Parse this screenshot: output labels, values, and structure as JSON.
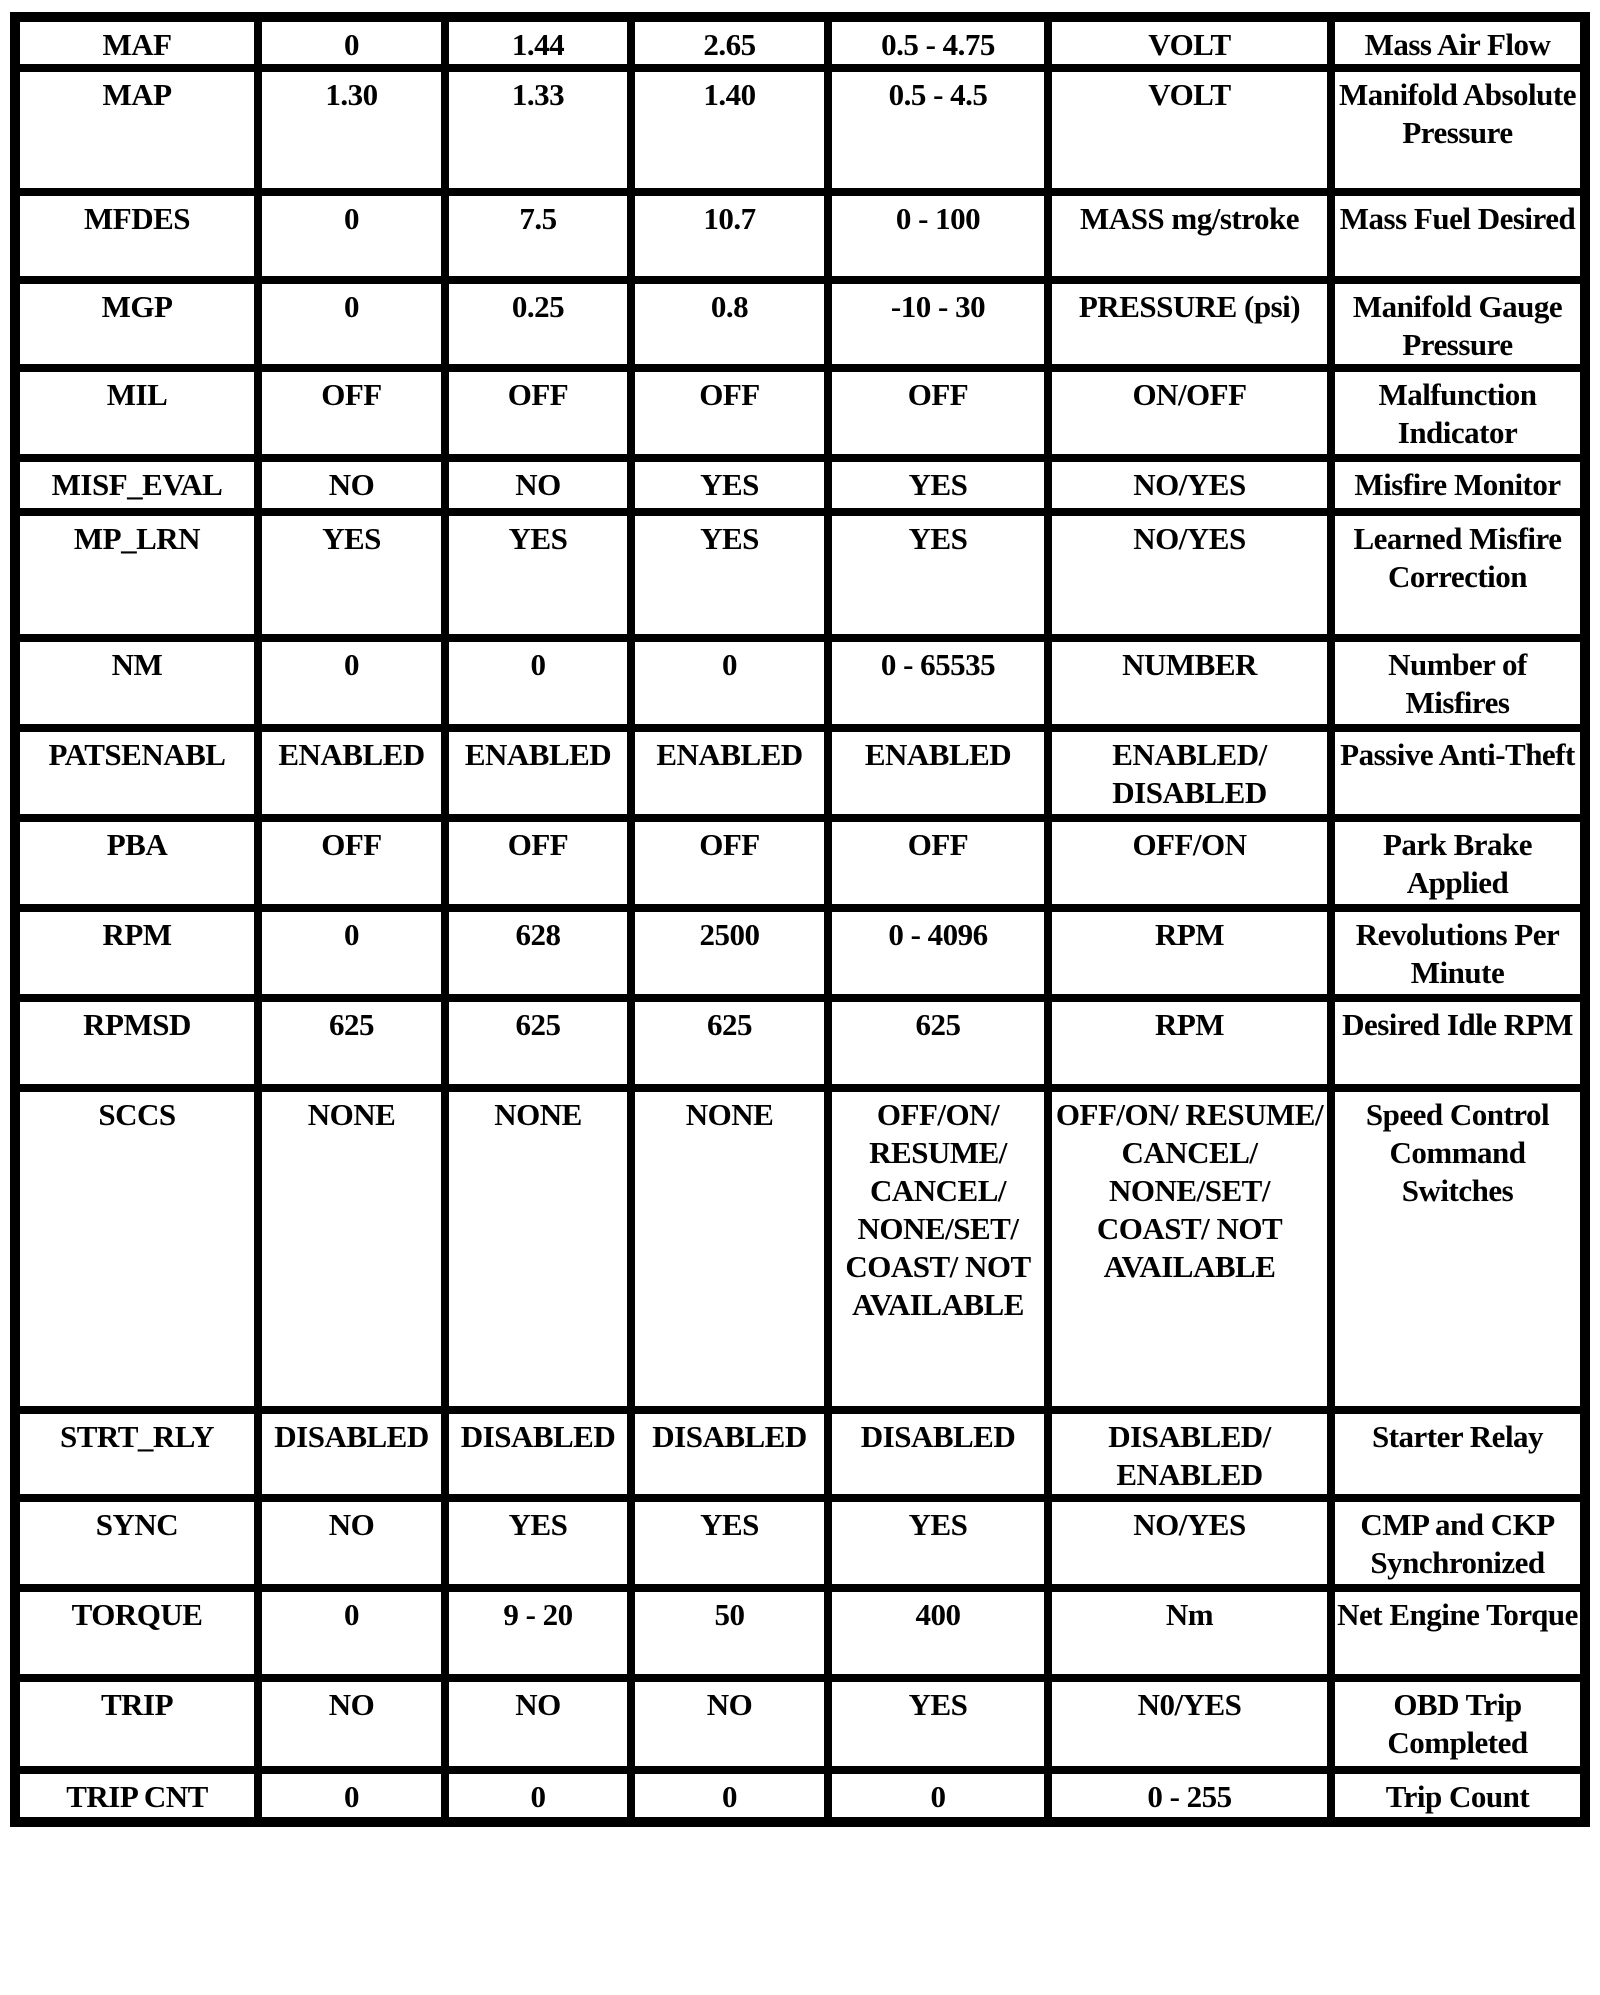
{
  "rows": [
    [
      "MAF",
      "0",
      "1.44",
      "2.65",
      "0.5 - 4.75",
      "VOLT",
      "Mass Air Flow"
    ],
    [
      "MAP",
      "1.30",
      "1.33",
      "1.40",
      "0.5 - 4.5",
      "VOLT",
      "Manifold Absolute Pressure"
    ],
    [
      "MFDES",
      "0",
      "7.5",
      "10.7",
      "0 - 100",
      "MASS mg/stroke",
      "Mass Fuel Desired"
    ],
    [
      "MGP",
      "0",
      "0.25",
      "0.8",
      "-10 - 30",
      "PRESSURE (psi)",
      "Manifold Gauge Pressure"
    ],
    [
      "MIL",
      "OFF",
      "OFF",
      "OFF",
      "OFF",
      "ON/OFF",
      "Malfunction Indicator"
    ],
    [
      "MISF_EVAL",
      "NO",
      "NO",
      "YES",
      "YES",
      "NO/YES",
      "Misfire Monitor"
    ],
    [
      "MP_LRN",
      "YES",
      "YES",
      "YES",
      "YES",
      "NO/YES",
      "Learned Misfire Correction"
    ],
    [
      "NM",
      "0",
      "0",
      "0",
      "0 - 65535",
      "NUMBER",
      "Number of Misfires"
    ],
    [
      "PATSENABL",
      "ENABLED",
      "ENABLED",
      "ENABLED",
      "ENABLED",
      "ENABLED/ DISABLED",
      "Passive Anti-Theft"
    ],
    [
      "PBA",
      "OFF",
      "OFF",
      "OFF",
      "OFF",
      "OFF/ON",
      "Park Brake Applied"
    ],
    [
      "RPM",
      "0",
      "628",
      "2500",
      "0 - 4096",
      "RPM",
      "Revolutions Per Minute"
    ],
    [
      "RPMSD",
      "625",
      "625",
      "625",
      "625",
      "RPM",
      "Desired Idle RPM"
    ],
    [
      "SCCS",
      "NONE",
      "NONE",
      "NONE",
      "OFF/ON/ RESUME/ CANCEL/ NONE/SET/ COAST/ NOT AVAILABLE",
      "OFF/ON/ RESUME/ CANCEL/ NONE/SET/ COAST/ NOT AVAILABLE",
      "Speed Control Command Switches"
    ],
    [
      "STRT_RLY",
      "DISABLED",
      "DISABLED",
      "DISABLED",
      "DISABLED",
      "DISABLED/ ENABLED",
      "Starter Relay"
    ],
    [
      "SYNC",
      "NO",
      "YES",
      "YES",
      "YES",
      "NO/YES",
      "CMP and CKP Synchronized"
    ],
    [
      "TORQUE",
      "0",
      "9 - 20",
      "50",
      "400",
      "Nm",
      "Net Engine Torque"
    ],
    [
      "TRIP",
      "NO",
      "NO",
      "NO",
      "YES",
      "N0/YES",
      "OBD Trip Completed"
    ],
    [
      "TRIP CNT",
      "0",
      "0",
      "0",
      "0",
      "0 - 255",
      "Trip Count"
    ]
  ]
}
